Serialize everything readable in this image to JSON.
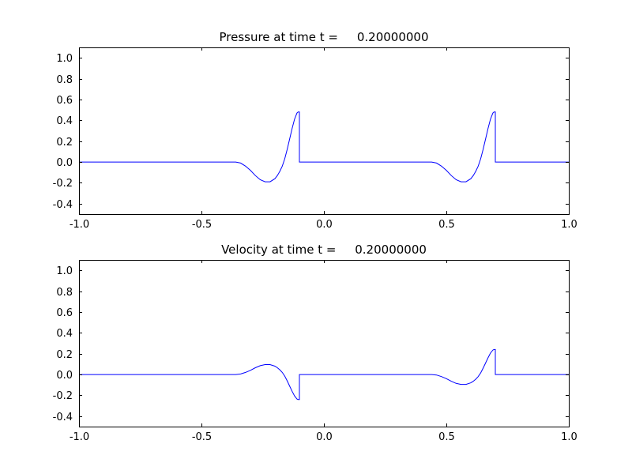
{
  "figure": {
    "background_color": "#ffffff",
    "frame_color": "#000000",
    "text_color": "#000000"
  },
  "chart_data": [
    {
      "type": "line",
      "title": "Pressure at time t =     0.20000000",
      "xlabel": "",
      "ylabel": "",
      "xlim": [
        -1.0,
        1.0
      ],
      "ylim": [
        -0.5,
        1.1
      ],
      "xticks": [
        -1.0,
        -0.5,
        0.0,
        0.5,
        1.0
      ],
      "xtick_labels": [
        "-1.0",
        "-0.5",
        "0.0",
        "0.5",
        "1.0"
      ],
      "yticks": [
        -0.4,
        -0.2,
        0.0,
        0.2,
        0.4,
        0.6,
        0.8,
        1.0
      ],
      "ytick_labels": [
        "-0.4",
        "-0.2",
        "0.0",
        "0.2",
        "0.4",
        "0.6",
        "0.8",
        "1.0"
      ],
      "grid": false,
      "legend": "none",
      "line_color": "#0000ff",
      "series": [
        {
          "name": "pressure",
          "x": [
            -1.0,
            -0.4,
            -0.36,
            -0.34,
            -0.32,
            -0.3,
            -0.28,
            -0.26,
            -0.24,
            -0.22,
            -0.2,
            -0.19,
            -0.18,
            -0.17,
            -0.16,
            -0.15,
            -0.14,
            -0.13,
            -0.12,
            -0.11,
            -0.105,
            -0.1,
            -0.1,
            0.0,
            0.2,
            0.44,
            0.46,
            0.48,
            0.5,
            0.52,
            0.54,
            0.56,
            0.58,
            0.6,
            0.61,
            0.62,
            0.63,
            0.64,
            0.65,
            0.66,
            0.67,
            0.68,
            0.69,
            0.695,
            0.7,
            0.7,
            1.0
          ],
          "y": [
            0.0,
            0.0,
            0.0,
            -0.01,
            -0.04,
            -0.08,
            -0.13,
            -0.17,
            -0.19,
            -0.19,
            -0.16,
            -0.13,
            -0.09,
            -0.04,
            0.03,
            0.12,
            0.22,
            0.32,
            0.41,
            0.47,
            0.48,
            0.48,
            0.0,
            0.0,
            0.0,
            0.0,
            -0.01,
            -0.04,
            -0.08,
            -0.13,
            -0.17,
            -0.19,
            -0.19,
            -0.16,
            -0.13,
            -0.09,
            -0.04,
            0.03,
            0.12,
            0.22,
            0.32,
            0.41,
            0.47,
            0.48,
            0.48,
            0.0,
            0.0
          ]
        }
      ]
    },
    {
      "type": "line",
      "title": "Velocity at time t =     0.20000000",
      "xlabel": "",
      "ylabel": "",
      "xlim": [
        -1.0,
        1.0
      ],
      "ylim": [
        -0.5,
        1.1
      ],
      "xticks": [
        -1.0,
        -0.5,
        0.0,
        0.5,
        1.0
      ],
      "xtick_labels": [
        "-1.0",
        "-0.5",
        "0.0",
        "0.5",
        "1.0"
      ],
      "yticks": [
        -0.4,
        -0.2,
        0.0,
        0.2,
        0.4,
        0.6,
        0.8,
        1.0
      ],
      "ytick_labels": [
        "-0.4",
        "-0.2",
        "0.0",
        "0.2",
        "0.4",
        "0.6",
        "0.8",
        "1.0"
      ],
      "grid": false,
      "legend": "none",
      "line_color": "#0000ff",
      "series": [
        {
          "name": "velocity",
          "x": [
            -1.0,
            -0.4,
            -0.36,
            -0.34,
            -0.32,
            -0.3,
            -0.28,
            -0.26,
            -0.24,
            -0.22,
            -0.2,
            -0.19,
            -0.18,
            -0.17,
            -0.16,
            -0.15,
            -0.14,
            -0.13,
            -0.12,
            -0.11,
            -0.105,
            -0.1,
            -0.1,
            0.0,
            0.2,
            0.44,
            0.46,
            0.48,
            0.5,
            0.52,
            0.54,
            0.56,
            0.58,
            0.6,
            0.61,
            0.62,
            0.63,
            0.64,
            0.65,
            0.66,
            0.67,
            0.68,
            0.69,
            0.695,
            0.7,
            0.7,
            1.0
          ],
          "y": [
            0.0,
            0.0,
            0.0,
            0.005,
            0.02,
            0.04,
            0.065,
            0.085,
            0.095,
            0.095,
            0.08,
            0.065,
            0.045,
            0.02,
            -0.015,
            -0.06,
            -0.11,
            -0.16,
            -0.205,
            -0.235,
            -0.24,
            -0.24,
            0.0,
            0.0,
            0.0,
            0.0,
            -0.005,
            -0.02,
            -0.04,
            -0.065,
            -0.085,
            -0.095,
            -0.095,
            -0.08,
            -0.065,
            -0.045,
            -0.02,
            0.015,
            0.06,
            0.11,
            0.16,
            0.205,
            0.235,
            0.24,
            0.24,
            0.0,
            0.0
          ]
        }
      ]
    }
  ]
}
